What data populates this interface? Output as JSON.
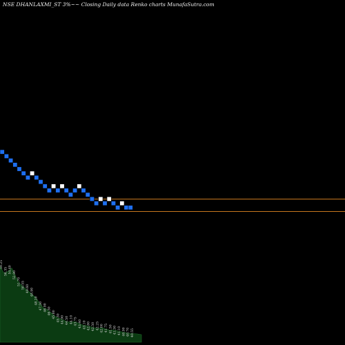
{
  "chart_data": {
    "type": "renko",
    "title": "NSE DHANLAXMI_ST 3%~~ Closing Daily data  Renko  charts MunafaSutra.com",
    "colors": {
      "background": "#000000",
      "up_brick": "#ffffff",
      "down_brick": "#1e6ff0",
      "reference_line": "#c8781e",
      "volume_area": "#0b3b12"
    },
    "bricks": [
      {
        "col": 0,
        "row": 0,
        "dir": "down"
      },
      {
        "col": 1,
        "row": 1,
        "dir": "down"
      },
      {
        "col": 2,
        "row": 2,
        "dir": "down"
      },
      {
        "col": 3,
        "row": 3,
        "dir": "down"
      },
      {
        "col": 4,
        "row": 4,
        "dir": "down"
      },
      {
        "col": 5,
        "row": 5,
        "dir": "down"
      },
      {
        "col": 6,
        "row": 6,
        "dir": "down"
      },
      {
        "col": 7,
        "row": 5,
        "dir": "up"
      },
      {
        "col": 8,
        "row": 6,
        "dir": "down"
      },
      {
        "col": 9,
        "row": 7,
        "dir": "down"
      },
      {
        "col": 10,
        "row": 8,
        "dir": "down"
      },
      {
        "col": 11,
        "row": 9,
        "dir": "down"
      },
      {
        "col": 12,
        "row": 8,
        "dir": "up"
      },
      {
        "col": 13,
        "row": 9,
        "dir": "down"
      },
      {
        "col": 14,
        "row": 8,
        "dir": "up"
      },
      {
        "col": 15,
        "row": 9,
        "dir": "down"
      },
      {
        "col": 16,
        "row": 10,
        "dir": "down"
      },
      {
        "col": 17,
        "row": 9,
        "dir": "down"
      },
      {
        "col": 18,
        "row": 8,
        "dir": "up"
      },
      {
        "col": 19,
        "row": 9,
        "dir": "down"
      },
      {
        "col": 20,
        "row": 10,
        "dir": "down"
      },
      {
        "col": 21,
        "row": 11,
        "dir": "down"
      },
      {
        "col": 22,
        "row": 12,
        "dir": "down"
      },
      {
        "col": 23,
        "row": 11,
        "dir": "up"
      },
      {
        "col": 24,
        "row": 12,
        "dir": "down"
      },
      {
        "col": 25,
        "row": 11,
        "dir": "up"
      },
      {
        "col": 26,
        "row": 12,
        "dir": "down"
      },
      {
        "col": 27,
        "row": 13,
        "dir": "down"
      },
      {
        "col": 28,
        "row": 12,
        "dir": "up"
      },
      {
        "col": 29,
        "row": 13,
        "dir": "down"
      },
      {
        "col": 30,
        "row": 13,
        "dir": "down"
      }
    ],
    "reference_levels": [
      0.575,
      0.612
    ],
    "volume_profile": [
      0.22,
      0.2,
      0.205,
      0.215,
      0.19,
      0.17,
      0.16,
      0.15,
      0.14,
      0.13,
      0.115,
      0.1,
      0.095,
      0.085,
      0.075,
      0.07,
      0.065,
      0.06,
      0.058,
      0.06,
      0.055,
      0.05,
      0.048,
      0.045,
      0.042,
      0.04,
      0.042,
      0.038,
      0.035,
      0.036,
      0.033,
      0.03,
      0.028,
      0.026,
      0.025,
      0.024,
      0.022
    ],
    "volume_labels": [
      "59.25",
      "56.35",
      "54.40",
      "52.90",
      "51.70",
      "50.55",
      "49.60",
      "48.90",
      "48.20",
      "47.50",
      "46.90",
      "46.30",
      "45.80",
      "45.30",
      "44.90",
      "44.50",
      "44.10",
      "43.75",
      "43.40",
      "43.10",
      "42.80",
      "42.50",
      "42.25",
      "42.00",
      "41.75",
      "41.50",
      "41.30",
      "41.10",
      "40.90",
      "40.70",
      "40.55"
    ]
  }
}
